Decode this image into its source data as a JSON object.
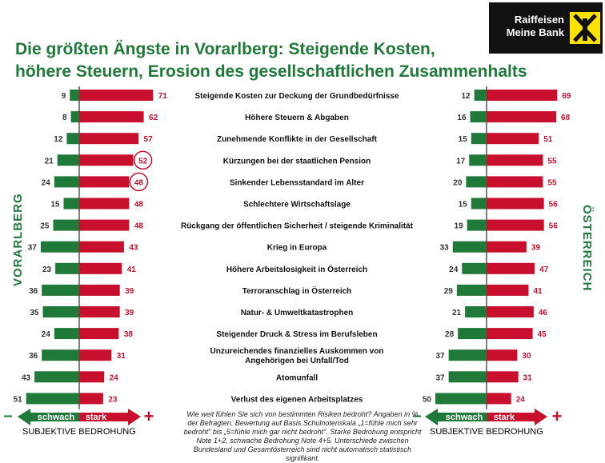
{
  "header": {
    "title_line1": "Die größten Ängste in Vorarlberg: Steigende Kosten,",
    "title_line2": "höhere Steuern, Erosion des gesellschaftlichen Zusammenhalts",
    "logo_line1": "Raiffeisen",
    "logo_line2": "Meine Bank"
  },
  "labels": {
    "left_side": "VORARLBERG",
    "right_side": "ÖSTERREICH",
    "weak": "schwach",
    "strong": "stark",
    "minus": "–",
    "plus": "+",
    "footer": "SUBJEKTIVE BEDROHUNG"
  },
  "footnote": "Wie weit fühlen Sie sich von bestimmten Risiken bedroht? Angaben in % der Befragten. Bewertung auf Basis Schulnotenskala „1=fühle mich sehr bedroht\" bis „5=fühle mich gar nicht bedroht\". Starke Bedrohung entspricht Note 1+2, schwache Bedrohung Note 4+5. Unterschiede zwischen Bundesland und Gesamtösterreich sind nicht automatisch statistisch signifikant.",
  "colors": {
    "green": "#1f7a3a",
    "red": "#c8102e",
    "circle": "#c8102e"
  },
  "chart_data": {
    "type": "bar",
    "title": "Die größten Ängste in Vorarlberg: Steigende Kosten, höhere Steuern, Erosion des gesellschaftlichen Zusammenhalts",
    "categories": [
      "Steigende Kosten zur Deckung der Grundbedürfnisse",
      "Höhere Steuern & Abgaben",
      "Zunehmende Konflikte in der Gesellschaft",
      "Kürzungen bei der staatlichen Pension",
      "Sinkender Lebensstandard im Alter",
      "Schlechtere Wirtschaftslage",
      "Rückgang der öffentlichen Sicherheit / steigende Kriminalität",
      "Krieg in Europa",
      "Höhere Arbeitslosigkeit in Österreich",
      "Terroranschlag in Österreich",
      "Natur- & Umweltkatastrophen",
      "Steigender Druck & Stress im Berufsleben",
      "Unzureichendes finanzielles Auskommen von Angehörigen bei Unfall/Tod",
      "Atomunfall",
      "Verlust des eigenen Arbeitsplatzes"
    ],
    "series": [
      {
        "name": "Vorarlberg schwach",
        "values": [
          9,
          8,
          12,
          21,
          24,
          15,
          25,
          37,
          23,
          36,
          35,
          24,
          36,
          43,
          51
        ]
      },
      {
        "name": "Vorarlberg stark",
        "values": [
          71,
          62,
          57,
          52,
          48,
          48,
          48,
          43,
          41,
          39,
          39,
          38,
          31,
          24,
          23
        ]
      },
      {
        "name": "Österreich schwach",
        "values": [
          12,
          16,
          15,
          17,
          20,
          15,
          19,
          33,
          24,
          29,
          21,
          28,
          37,
          37,
          50
        ]
      },
      {
        "name": "Österreich stark",
        "values": [
          69,
          68,
          51,
          55,
          55,
          56,
          56,
          39,
          47,
          41,
          46,
          45,
          30,
          31,
          24
        ]
      }
    ],
    "highlighted": [
      {
        "series": "Vorarlberg stark",
        "category": "Kürzungen bei der staatlichen Pension"
      },
      {
        "series": "Vorarlberg stark",
        "category": "Sinkender Lebensstandard im Alter"
      }
    ],
    "xlabel": "SUBJEKTIVE BEDROHUNG",
    "ylabel": ""
  }
}
